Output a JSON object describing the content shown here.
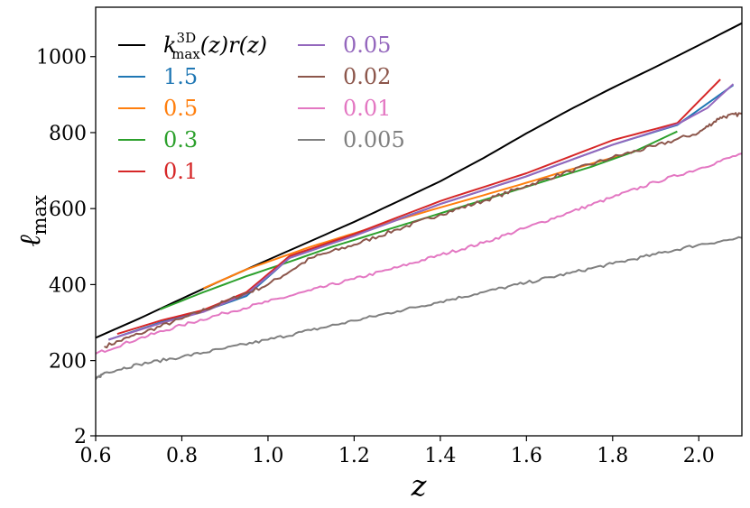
{
  "chart_data": {
    "type": "line",
    "xlabel": "z",
    "ylabel": "ℓ",
    "ylabel_sub": "max",
    "xlim": [
      0.6,
      2.1
    ],
    "ylim": [
      2,
      1130
    ],
    "x_ticks": [
      0.6,
      0.8,
      1.0,
      1.2,
      1.4,
      1.6,
      1.8,
      2.0
    ],
    "x_tick_labels": [
      "0.6",
      "0.8",
      "1.0",
      "1.2",
      "1.4",
      "1.6",
      "1.8",
      "2.0"
    ],
    "y_ticks": [
      2,
      200,
      400,
      600,
      800,
      1000
    ],
    "y_tick_labels": [
      "2",
      "200",
      "400",
      "600",
      "800",
      "1000"
    ],
    "grid": false,
    "legend_placement": "top-left, two columns",
    "series": [
      {
        "name": "k_max^3D(z) r(z)",
        "legend_main": "k",
        "legend_sup": "3D",
        "legend_sub": "max",
        "legend_rest": "(z)r(z)",
        "color": "#000000",
        "noise": 0,
        "x": [
          0.6,
          0.7,
          0.8,
          0.9,
          1.0,
          1.1,
          1.2,
          1.3,
          1.4,
          1.5,
          1.6,
          1.7,
          1.8,
          1.9,
          2.0,
          2.1
        ],
        "y": [
          260,
          310,
          363,
          415,
          465,
          515,
          565,
          618,
          672,
          733,
          798,
          860,
          918,
          973,
          1030,
          1088
        ]
      },
      {
        "name": "1.5",
        "color": "#1f77b4",
        "noise": 0,
        "x": [
          0.63,
          0.75,
          0.85,
          0.95,
          1.05,
          1.2,
          1.4,
          1.6,
          1.8,
          1.95,
          2.08
        ],
        "y": [
          255,
          300,
          330,
          370,
          470,
          530,
          612,
          685,
          768,
          820,
          925
        ]
      },
      {
        "name": "0.5",
        "color": "#ff7f0e",
        "noise": 0,
        "x": [
          0.85,
          0.95,
          1.0,
          1.1,
          1.2,
          1.3,
          1.4,
          1.5,
          1.6,
          1.7,
          1.85
        ],
        "y": [
          390,
          440,
          460,
          500,
          535,
          570,
          603,
          635,
          668,
          702,
          750
        ]
      },
      {
        "name": "0.3",
        "color": "#2ca02c",
        "noise": 0,
        "x": [
          0.75,
          0.85,
          0.95,
          1.05,
          1.15,
          1.25,
          1.35,
          1.45,
          1.55,
          1.65,
          1.75,
          1.85,
          1.95
        ],
        "y": [
          335,
          380,
          422,
          460,
          500,
          535,
          570,
          605,
          640,
          675,
          710,
          750,
          803
        ]
      },
      {
        "name": "0.1",
        "color": "#d62728",
        "noise": 0,
        "x": [
          0.65,
          0.75,
          0.85,
          0.95,
          1.05,
          1.2,
          1.4,
          1.6,
          1.8,
          1.95,
          2.05
        ],
        "y": [
          270,
          305,
          333,
          380,
          475,
          533,
          620,
          693,
          780,
          825,
          940
        ]
      },
      {
        "name": "0.05",
        "color": "#9467bd",
        "noise": 0,
        "x": [
          0.63,
          0.75,
          0.85,
          0.95,
          1.05,
          1.2,
          1.4,
          1.6,
          1.8,
          1.95,
          2.02,
          2.08
        ],
        "y": [
          255,
          298,
          328,
          375,
          470,
          528,
          612,
          685,
          768,
          822,
          865,
          928
        ]
      },
      {
        "name": "0.02",
        "color": "#8c564b",
        "noise": 5,
        "x": [
          0.62,
          0.7,
          0.8,
          0.9,
          1.0,
          1.1,
          1.2,
          1.3,
          1.4,
          1.5,
          1.6,
          1.7,
          1.8,
          1.9,
          2.0,
          2.05,
          2.1
        ],
        "y": [
          237,
          270,
          310,
          355,
          400,
          470,
          505,
          545,
          585,
          620,
          660,
          698,
          735,
          765,
          800,
          840,
          850
        ]
      },
      {
        "name": "0.01",
        "color": "#e377c2",
        "noise": 4,
        "x": [
          0.6,
          0.7,
          0.8,
          0.9,
          1.0,
          1.1,
          1.2,
          1.3,
          1.4,
          1.5,
          1.6,
          1.7,
          1.8,
          1.9,
          2.0,
          2.1
        ],
        "y": [
          218,
          258,
          293,
          325,
          355,
          385,
          415,
          445,
          478,
          510,
          550,
          590,
          630,
          670,
          705,
          745
        ]
      },
      {
        "name": "0.005",
        "color": "#7f7f7f",
        "noise": 4,
        "x": [
          0.6,
          0.62,
          0.7,
          0.8,
          0.9,
          1.0,
          1.1,
          1.2,
          1.3,
          1.4,
          1.5,
          1.6,
          1.7,
          1.8,
          1.9,
          2.0,
          2.1
        ],
        "y": [
          150,
          168,
          190,
          210,
          232,
          255,
          280,
          305,
          330,
          355,
          380,
          405,
          430,
          455,
          480,
          505,
          523
        ]
      }
    ]
  }
}
